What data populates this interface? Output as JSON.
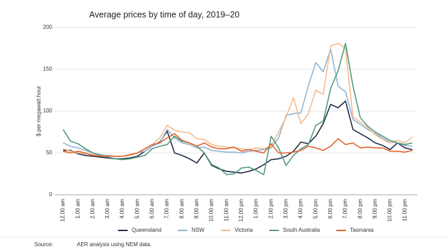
{
  "chart_data": {
    "type": "line",
    "title": "Average prices by time of day, 2019–20",
    "y_label": "$ per megawatt hour",
    "source_label": "Source:",
    "source_text": "AER analysis using NEM data.",
    "categories": [
      "12.00 am",
      null,
      "1.00 am",
      null,
      "2.00 am",
      null,
      "3.00 am",
      null,
      "4.00 am",
      null,
      "5.00 am",
      null,
      "6.00 am",
      null,
      "7.00 am",
      null,
      "8.00 am",
      null,
      "9.00 am",
      null,
      "10.00 am",
      null,
      "11.00 am",
      null,
      "12.00 pm",
      null,
      "1.00 pm",
      null,
      "2.00 pm",
      null,
      "3.00 pm",
      null,
      "4.00 pm",
      null,
      "5.00 pm",
      null,
      "6.00 pm",
      null,
      "7.00 pm",
      null,
      "8.00 pm",
      null,
      "9.00 pm",
      null,
      "10.00 pm",
      null,
      "11.00 pm",
      null
    ],
    "series": [
      {
        "name": "Queensland",
        "color": "#1f2a44",
        "values": [
          53,
          53,
          49,
          47,
          46,
          45,
          44,
          43,
          43,
          44,
          46,
          52,
          58,
          63,
          76,
          50,
          47,
          43,
          38,
          50,
          35,
          31,
          28,
          27,
          26,
          28,
          31,
          36,
          42,
          43,
          46,
          52,
          63,
          61,
          70,
          85,
          108,
          104,
          112,
          78,
          73,
          68,
          62,
          59,
          54,
          62,
          56,
          54
        ]
      },
      {
        "name": "NSW",
        "color": "#8fb3d1",
        "values": [
          62,
          58,
          56,
          53,
          50,
          48,
          47,
          46,
          46,
          47,
          50,
          52,
          58,
          62,
          78,
          68,
          62,
          60,
          56,
          57,
          53,
          52,
          51,
          51,
          50,
          52,
          53,
          54,
          56,
          68,
          95,
          97,
          98,
          130,
          158,
          147,
          174,
          130,
          123,
          90,
          84,
          78,
          73,
          68,
          63,
          62,
          59,
          58
        ]
      },
      {
        "name": "Victoria",
        "color": "#f5b98a",
        "values": [
          55,
          52,
          50,
          49,
          48,
          47,
          46,
          46,
          46,
          47,
          50,
          55,
          60,
          68,
          83,
          77,
          75,
          74,
          67,
          66,
          60,
          58,
          57,
          56,
          55,
          54,
          56,
          55,
          58,
          75,
          93,
          116,
          85,
          97,
          125,
          120,
          178,
          181,
          175,
          93,
          87,
          80,
          72,
          66,
          62,
          65,
          62,
          69
        ]
      },
      {
        "name": "South Australia",
        "color": "#4f9a7a",
        "values": [
          78,
          64,
          61,
          55,
          50,
          47,
          45,
          43,
          42,
          43,
          45,
          47,
          55,
          58,
          60,
          70,
          64,
          62,
          58,
          50,
          36,
          32,
          24,
          25,
          32,
          33,
          29,
          24,
          70,
          56,
          35,
          47,
          55,
          60,
          83,
          88,
          127,
          148,
          181,
          130,
          92,
          82,
          75,
          70,
          65,
          62,
          60,
          62
        ]
      },
      {
        "name": "Tasmania",
        "color": "#e0622a",
        "values": [
          52,
          50,
          52,
          50,
          47,
          46,
          46,
          46,
          46,
          48,
          50,
          55,
          60,
          62,
          68,
          73,
          65,
          62,
          58,
          62,
          57,
          55,
          55,
          57,
          52,
          54,
          52,
          50,
          61,
          50,
          50,
          51,
          53,
          58,
          56,
          53,
          58,
          67,
          60,
          62,
          56,
          57,
          56,
          56,
          52,
          52,
          51,
          53
        ]
      }
    ],
    "ylim": [
      0,
      200
    ],
    "yticks": [
      0,
      50,
      100,
      150,
      200
    ],
    "grid": true
  }
}
